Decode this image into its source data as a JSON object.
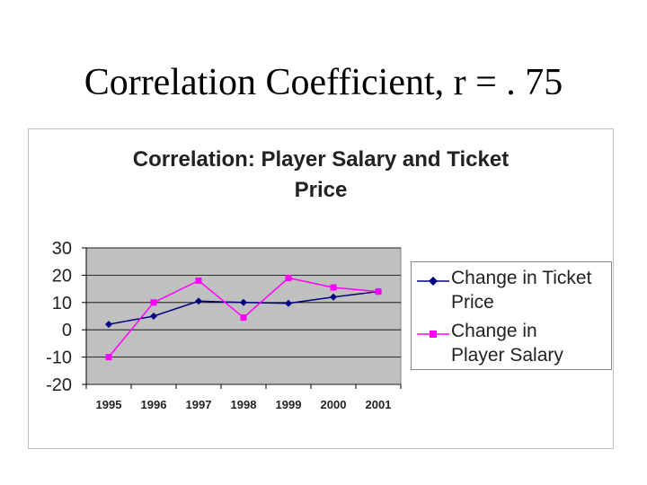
{
  "slide": {
    "title": "Correlation Coefficient, r = . 75"
  },
  "chart_data": {
    "type": "line",
    "title": "Correlation: Player Salary and Ticket Price",
    "title_lines": [
      "Correlation: Player Salary and Ticket",
      "Price"
    ],
    "categories": [
      "1995",
      "1996",
      "1997",
      "1998",
      "1999",
      "2000",
      "2001"
    ],
    "ylim": [
      -20,
      30
    ],
    "yticks": [
      30,
      20,
      10,
      0,
      -10,
      -20
    ],
    "ytick_labels": [
      "30",
      "20",
      "10",
      "0",
      "-10",
      "-20"
    ],
    "plot_background": "#c0c0c0",
    "grid": "horizontal",
    "legend_position": "right",
    "series": [
      {
        "name": "Change in Ticket Price",
        "legend_lines": [
          "Change in Ticket",
          "Price"
        ],
        "values": [
          2,
          5,
          10.5,
          10,
          9.7,
          12,
          14
        ],
        "color": "#000080",
        "marker": "diamond"
      },
      {
        "name": "Change in Player Salary",
        "legend_lines": [
          "Change in",
          "Player Salary"
        ],
        "values": [
          -10,
          10,
          18,
          4.5,
          19,
          15.5,
          14
        ],
        "color": "#ff00ff",
        "marker": "square"
      }
    ]
  }
}
